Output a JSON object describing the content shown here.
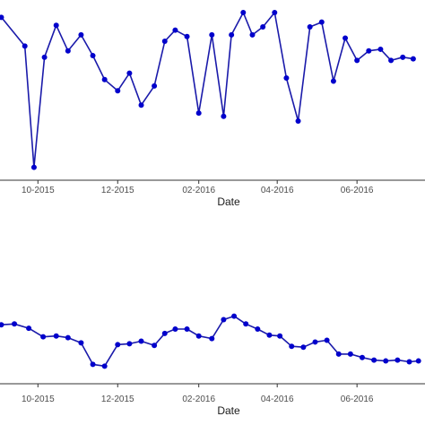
{
  "chart_data": [
    {
      "type": "line",
      "xlabel": "Date",
      "ylabel": "",
      "x_tick_labels": [
        "10-2015",
        "12-2015",
        "02-2016",
        "04-2016",
        "06-2016"
      ],
      "x_tick_dates": [
        "2015-10-01",
        "2015-12-01",
        "2016-02-01",
        "2016-04-01",
        "2016-06-01"
      ],
      "xlim": [
        "2015-09-02",
        "2016-07-23"
      ],
      "ylim": [
        0,
        100
      ],
      "grid": false,
      "marker_color": "#0000cc",
      "line_color": "#1a1aaa",
      "series": [
        {
          "x": [
            "2015-09-03",
            "2015-09-21",
            "2015-09-28",
            "2015-10-06",
            "2015-10-15",
            "2015-10-24",
            "2015-11-03",
            "2015-11-12",
            "2015-11-21",
            "2015-12-01",
            "2015-12-10",
            "2015-12-19",
            "2015-12-29",
            "2016-01-06",
            "2016-01-14",
            "2016-01-23",
            "2016-02-01",
            "2016-02-11",
            "2016-02-20",
            "2016-02-26",
            "2016-03-06",
            "2016-03-13",
            "2016-03-21",
            "2016-03-30",
            "2016-04-08",
            "2016-04-17",
            "2016-04-26",
            "2016-05-05",
            "2016-05-14",
            "2016-05-23",
            "2016-06-01",
            "2016-06-10",
            "2016-06-19",
            "2016-06-27",
            "2016-07-06",
            "2016-07-14"
          ],
          "y": [
            97,
            79,
            3,
            72,
            92,
            76,
            86,
            73,
            58,
            51,
            62,
            42,
            54,
            82,
            89,
            85,
            37,
            86,
            35,
            86,
            100,
            86,
            91,
            100,
            59,
            32,
            91,
            94,
            57,
            84,
            70,
            76,
            77,
            70,
            72,
            71
          ]
        }
      ]
    },
    {
      "type": "line",
      "xlabel": "Date",
      "ylabel": "",
      "x_tick_labels": [
        "10-2015",
        "12-2015",
        "02-2016",
        "04-2016",
        "06-2016"
      ],
      "x_tick_dates": [
        "2015-10-01",
        "2015-12-01",
        "2016-02-01",
        "2016-04-01",
        "2016-06-01"
      ],
      "xlim": [
        "2015-09-02",
        "2016-07-23"
      ],
      "ylim": [
        0,
        100
      ],
      "grid": false,
      "marker_color": "#0000cc",
      "line_color": "#1a1aaa",
      "series": [
        {
          "x": [
            "2015-09-03",
            "2015-09-13",
            "2015-09-24",
            "2015-10-05",
            "2015-10-15",
            "2015-10-24",
            "2015-11-03",
            "2015-11-12",
            "2015-11-21",
            "2015-12-01",
            "2015-12-10",
            "2015-12-19",
            "2015-12-29",
            "2016-01-06",
            "2016-01-14",
            "2016-01-23",
            "2016-02-01",
            "2016-02-11",
            "2016-02-20",
            "2016-02-28",
            "2016-03-08",
            "2016-03-17",
            "2016-03-26",
            "2016-04-03",
            "2016-04-12",
            "2016-04-21",
            "2016-04-30",
            "2016-05-09",
            "2016-05-18",
            "2016-05-27",
            "2016-06-05",
            "2016-06-14",
            "2016-06-23",
            "2016-07-02",
            "2016-07-11",
            "2016-07-18"
          ],
          "y": [
            56,
            57,
            52,
            42,
            43,
            41,
            35,
            10,
            8,
            33,
            34,
            37,
            32,
            46,
            51,
            51,
            43,
            40,
            62,
            66,
            57,
            51,
            44,
            43,
            31,
            30,
            36,
            38,
            22,
            22,
            18,
            15,
            14,
            15,
            13,
            14
          ]
        }
      ]
    }
  ]
}
